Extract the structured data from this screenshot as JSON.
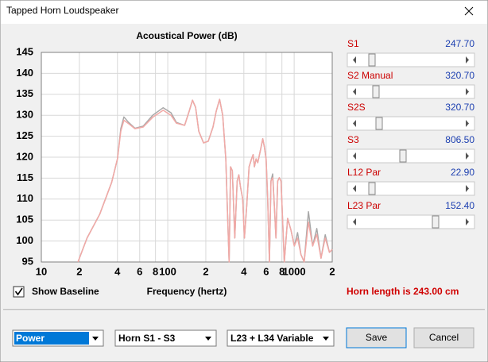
{
  "window": {
    "title": "Tapped Horn Loudspeaker"
  },
  "chart_data": {
    "type": "line",
    "title": "Acoustical Power (dB)",
    "x_label": "Frequency (hertz)",
    "x": [
      19.5,
      23,
      29,
      36,
      40,
      42.5,
      45,
      49,
      55,
      64,
      76,
      92,
      106,
      117,
      136,
      148,
      157,
      166,
      176,
      192,
      209,
      228,
      242,
      257,
      272,
      288,
      297,
      306,
      314,
      324,
      339,
      354,
      365,
      376,
      392,
      404,
      421,
      440,
      460,
      474,
      485,
      500,
      515,
      532,
      548,
      564,
      581,
      600,
      617,
      637,
      655,
      676,
      697,
      718,
      741,
      763,
      787,
      811,
      836,
      888,
      943,
      1002,
      1064,
      1130,
      1200,
      1297,
      1400,
      1510,
      1630,
      1760,
      1900,
      2000
    ],
    "series": [
      {
        "color": "#a8a8a8",
        "values": [
          95,
          100.7,
          106.4,
          114,
          119.6,
          126.8,
          129.6,
          128.3,
          126.9,
          127.4,
          130,
          131.8,
          130.6,
          128.3,
          127.6,
          131,
          133.6,
          131.9,
          126.2,
          123.4,
          123.8,
          127.2,
          131,
          133.8,
          130,
          119.6,
          106.4,
          95,
          117.7,
          116.8,
          100.7,
          114.3,
          115.8,
          113,
          110,
          100.7,
          108.3,
          117.7,
          119.6,
          120.6,
          117.7,
          119.6,
          118.7,
          120.6,
          122.5,
          124.4,
          122.5,
          119.6,
          110,
          95,
          114.3,
          116,
          108.3,
          100.7,
          114.3,
          115.1,
          114.3,
          104.8,
          95,
          105.4,
          102.6,
          98.8,
          102,
          96.8,
          95,
          107,
          98.8,
          103,
          95.9,
          101.5,
          97.3,
          98
        ]
      },
      {
        "color": "#f2a9a6",
        "values": [
          95,
          100.7,
          106.4,
          114,
          119.6,
          126.2,
          128.8,
          128,
          126.8,
          127.2,
          129.5,
          131.2,
          130,
          128.1,
          127.6,
          131,
          133.6,
          131.9,
          126.2,
          123.4,
          123.8,
          127.2,
          131,
          133.8,
          130,
          119.6,
          106.4,
          95,
          117.7,
          116.8,
          100.7,
          114.3,
          115.8,
          113,
          110,
          100.7,
          108.3,
          117.7,
          119.6,
          120.6,
          117.7,
          119.6,
          118.7,
          120.6,
          122.5,
          124.4,
          122.5,
          119.6,
          110,
          95,
          114.3,
          115.1,
          108.3,
          100.7,
          114.3,
          115.1,
          114.3,
          104.8,
          95,
          105.4,
          102.6,
          98.8,
          100.7,
          96.8,
          95,
          104.5,
          98.8,
          101.6,
          95.9,
          100.7,
          97.3,
          98
        ]
      }
    ],
    "xlim": [
      10,
      2000
    ],
    "log_x": true,
    "xticks": [
      10,
      {
        "value": 20,
        "label": "2"
      },
      {
        "value": 40,
        "label": "4"
      },
      {
        "value": 60,
        "label": "6"
      },
      {
        "value": 80,
        "label": "8"
      },
      100,
      {
        "value": 200,
        "label": "2"
      },
      {
        "value": 400,
        "label": "4"
      },
      {
        "value": 600,
        "label": "6"
      },
      {
        "value": 800,
        "label": "8"
      },
      1000,
      {
        "value": 2000,
        "label": "2"
      }
    ],
    "ylim": [
      95,
      145
    ],
    "yticks": [
      95,
      100,
      105,
      110,
      115,
      120,
      125,
      130,
      135,
      140,
      145
    ],
    "grid": true
  },
  "sliders": [
    {
      "label": "S1",
      "value": "247.70"
    },
    {
      "label": "S2  Manual",
      "value": "320.70"
    },
    {
      "label": "S2S",
      "value": "320.70"
    },
    {
      "label": "S3",
      "value": "806.50"
    },
    {
      "label": "L12  Par",
      "value": "22.90"
    },
    {
      "label": "L23  Par",
      "value": "152.40"
    }
  ],
  "show_baseline": {
    "label": "Show Baseline",
    "checked": true
  },
  "horn_length": "Horn length is 243.00 cm",
  "dropdowns": [
    "Power",
    "Horn S1 - S3",
    "L23 + L34 Variable"
  ],
  "buttons": [
    "Save",
    "Cancel"
  ]
}
